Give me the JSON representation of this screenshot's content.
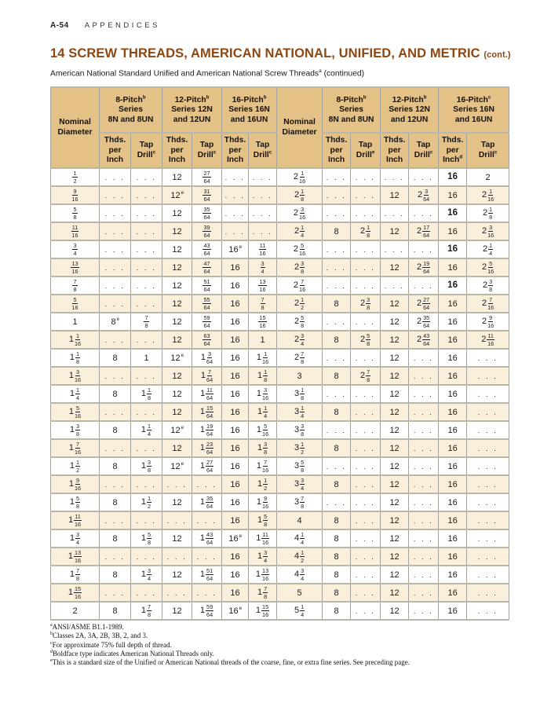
{
  "page": {
    "page_label": "A-54",
    "section": "APPENDICES",
    "title": "14 SCREW THREADS, AMERICAN NATIONAL, UNIFIED, AND METRIC",
    "title_cont": "(cont.)",
    "subtitle": "American National Standard Unified and American National Screw Threads",
    "subtitle_sup": "a",
    "subtitle_cont": " (continued)"
  },
  "colors": {
    "title_brown": "#8d4712",
    "header_tan": "#e3c187",
    "row_cream": "#f9efdb",
    "grid_gray": "#a2a29a"
  },
  "table": {
    "nominal_l1": "Nominal",
    "nominal_l2": "Diameter",
    "groups": [
      {
        "l1": "8-Pitch",
        "l1_sup": "b",
        "l2": "Series",
        "l3": "8N and 8UN",
        "thds_l1": "Thds.",
        "thds_l2": "per",
        "thds_l3": "Inch",
        "thds_sup": "",
        "tap_l1": "Tap",
        "tap_l2": "Drill",
        "tap_sup": "c"
      },
      {
        "l1": "12-Pitch",
        "l1_sup": "b",
        "l2": "Series 12N",
        "l3": "and 12UN",
        "thds_l1": "Thds.",
        "thds_l2": "per",
        "thds_l3": "Inch",
        "thds_sup": "",
        "tap_l1": "Tap",
        "tap_l2": "Drill",
        "tap_sup": "c"
      },
      {
        "l1": "16-Pitch",
        "l1_sup": "b",
        "l2": "Series 16N",
        "l3": "and 16UN",
        "thds_l1": "Thds.",
        "thds_l2": "per",
        "thds_l3": "Inch",
        "thds_sup": "",
        "tap_l1": "Tap",
        "tap_l2": "Drill",
        "tap_sup": "c"
      },
      {
        "l1": "8-Pitch",
        "l1_sup": "b",
        "l2": "Series",
        "l3": "8N and 8UN",
        "thds_l1": "Thds.",
        "thds_l2": "per",
        "thds_l3": "Inch",
        "thds_sup": "",
        "tap_l1": "Tap",
        "tap_l2": "Drill",
        "tap_sup": "e"
      },
      {
        "l1": "12-Pitch",
        "l1_sup": "b",
        "l2": "Series 12N",
        "l3": "and 12UN",
        "thds_l1": "Thds.",
        "thds_l2": "per",
        "thds_l3": "Inch",
        "thds_sup": "",
        "tap_l1": "Tap",
        "tap_l2": "Drill",
        "tap_sup": "c"
      },
      {
        "l1": "16-Pitch",
        "l1_sup": "c",
        "l2": "Series 16N",
        "l3": "and 16UN",
        "thds_l1": "Thds.",
        "thds_l2": "per",
        "thds_l3": "Inch",
        "thds_sup": "d",
        "tap_l1": "Tap",
        "tap_l2": "Drill",
        "tap_sup": "c"
      }
    ],
    "rows": [
      [
        "1/2",
        "...",
        "...",
        "12",
        "27/64",
        "...",
        "...",
        "2 1/16",
        "...",
        "...",
        "...",
        "...",
        "b:16",
        "2"
      ],
      [
        "9/16",
        "...",
        "...",
        "12^e",
        "31/64",
        "...",
        "...",
        "2 1/8",
        "...",
        "...",
        "12",
        "2 3/64",
        "16",
        "2 1/16"
      ],
      [
        "5/8",
        "...",
        "...",
        "12",
        "35/64",
        "...",
        "...",
        "2 3/16",
        "...",
        "...",
        "...",
        "...",
        "b:16",
        "2 1/8"
      ],
      [
        "11/16",
        "...",
        "...",
        "12",
        "39/64",
        "...",
        "...",
        "2 1/4",
        "8",
        "2 1/8",
        "12",
        "2 17/64",
        "16",
        "2 3/16"
      ],
      [
        "3/4",
        "...",
        "...",
        "12",
        "43/64",
        "16^e",
        "11/16",
        "2 5/16",
        "...",
        "...",
        "...",
        "...",
        "b:16",
        "2 1/4"
      ],
      [
        "13/16",
        "...",
        "...",
        "12",
        "47/64",
        "16",
        "3/4",
        "2 3/8",
        "...",
        "...",
        "12",
        "2 19/64",
        "16",
        "2 5/16"
      ],
      [
        "7/8",
        "...",
        "...",
        "12",
        "51/64",
        "16",
        "13/16",
        "2 7/16",
        "...",
        "...",
        "...",
        "...",
        "b:16",
        "2 3/8"
      ],
      [
        "5/16",
        "...",
        "...",
        "12",
        "55/64",
        "16",
        "7/8",
        "2 1/2",
        "8",
        "2 3/8",
        "12",
        "2 27/64",
        "16",
        "2 7/16"
      ],
      [
        "1",
        "8^e",
        "7/8",
        "12",
        "59/64",
        "16",
        "15/16",
        "2 5/8",
        "...",
        "...",
        "12",
        "2 35/64",
        "16",
        "2 9/16"
      ],
      [
        "1 1/16",
        "...",
        "...",
        "12",
        "63/64",
        "16",
        "1",
        "2 3/4",
        "8",
        "2 5/8",
        "12",
        "2 43/64",
        "16",
        "2 11/16"
      ],
      [
        "1 1/8",
        "8",
        "1",
        "12^e",
        "1 3/64",
        "16",
        "1 1/16",
        "2 7/8",
        "...",
        "...",
        "12",
        "...",
        "16",
        "..."
      ],
      [
        "1 3/16",
        "...",
        "...",
        "12",
        "1 7/64",
        "16",
        "1 1/8",
        "3",
        "8",
        "2 7/8",
        "12",
        "...",
        "16",
        "..."
      ],
      [
        "1 1/4",
        "8",
        "1 1/8",
        "12",
        "1 11/64",
        "16",
        "1 3/16",
        "3 1/8",
        "...",
        "...",
        "12",
        "...",
        "16",
        "..."
      ],
      [
        "1 5/16",
        "...",
        "...",
        "12",
        "1 15/64",
        "16",
        "1 1/4",
        "3 1/4",
        "8",
        "...",
        "12",
        "...",
        "16",
        "..."
      ],
      [
        "1 3/8",
        "8",
        "1 1/4",
        "12^e",
        "1 19/64",
        "16",
        "1 5/16",
        "3 3/8",
        "...",
        "...",
        "12",
        "...",
        "16",
        "..."
      ],
      [
        "1 7/16",
        "...",
        "...",
        "12",
        "1 23/64",
        "16",
        "1 3/8",
        "3 1/2",
        "8",
        "...",
        "12",
        "...",
        "16",
        "..."
      ],
      [
        "1 1/2",
        "8",
        "1 3/8",
        "12^e",
        "1 27/64",
        "16",
        "1 7/16",
        "3 5/8",
        "...",
        "...",
        "12",
        "...",
        "16",
        "..."
      ],
      [
        "1 9/16",
        "...",
        "...",
        "...",
        "...",
        "16",
        "1 1/2",
        "3 3/4",
        "8",
        "...",
        "12",
        "...",
        "16",
        "..."
      ],
      [
        "1 5/8",
        "8",
        "1 1/2",
        "12",
        "1 35/64",
        "16",
        "1 9/16",
        "3 7/8",
        "...",
        "...",
        "12",
        "...",
        "16",
        "..."
      ],
      [
        "1 11/16",
        "...",
        "...",
        "...",
        "...",
        "16",
        "1 5/8",
        "4",
        "8",
        "...",
        "12",
        "...",
        "16",
        "..."
      ],
      [
        "1 3/4",
        "8",
        "1 5/8",
        "12",
        "1 43/64",
        "16^e",
        "1 11/16",
        "4 1/4",
        "8",
        "...",
        "12",
        "...",
        "16",
        "..."
      ],
      [
        "1 13/16",
        "...",
        "...",
        "...",
        "...",
        "16",
        "1 3/4",
        "4 1/2",
        "8",
        "...",
        "12",
        "...",
        "16",
        "..."
      ],
      [
        "1 7/8",
        "8",
        "1 3/4",
        "12",
        "1 51/64",
        "16",
        "1 13/16",
        "4 3/4",
        "8",
        "...",
        "12",
        "...",
        "16",
        "..."
      ],
      [
        "1 15/16",
        "...",
        "...",
        "...",
        "...",
        "16",
        "1 7/8",
        "5",
        "8",
        "...",
        "12",
        "...",
        "16",
        "..."
      ],
      [
        "2",
        "8",
        "1 7/8",
        "12",
        "1 59/64",
        "16^e",
        "1 15/16",
        "5 1/4",
        "8",
        "...",
        "12",
        "...",
        "16",
        "..."
      ]
    ]
  },
  "footnotes": [
    {
      "sup": "a",
      "text": "ANSI/ASME B1.1-1989."
    },
    {
      "sup": "b",
      "text": "Classes 2A, 3A, 2B, 3B, 2, and 3."
    },
    {
      "sup": "c",
      "text": "For approximate 75% full depth of thread."
    },
    {
      "sup": "d",
      "text": "Boldface type indicates American National Threads only."
    },
    {
      "sup": "e",
      "text": "This is a standard size of the Unified or American National threads of the coarse, fine, or extra fine series. See preceding page."
    }
  ]
}
